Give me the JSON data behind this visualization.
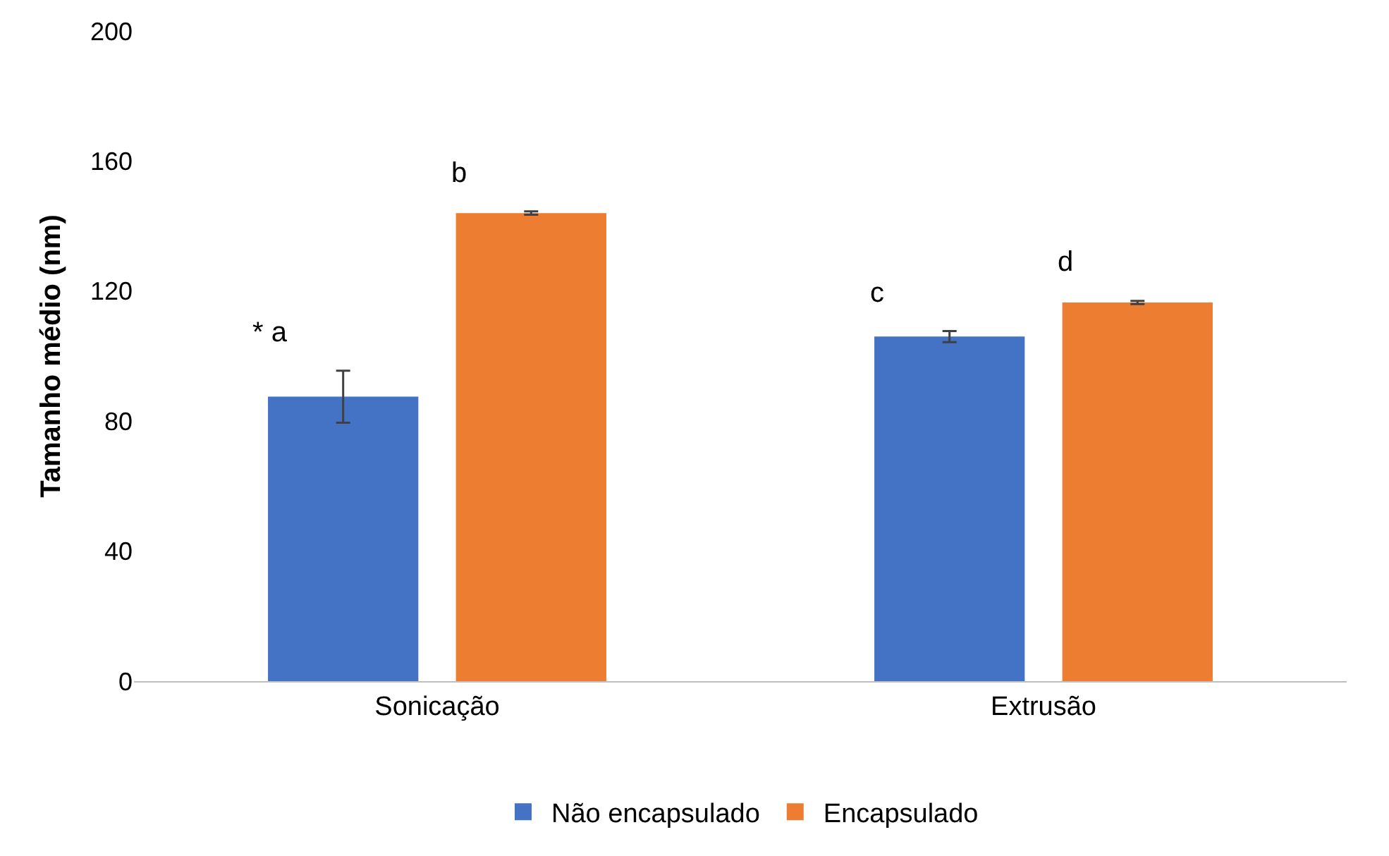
{
  "chart_data": {
    "type": "bar",
    "ylabel": "Tamanho médio (nm)",
    "categories": [
      "Sonicação",
      "Extrusão"
    ],
    "series": [
      {
        "name": "Não encapsulado",
        "color": "#4472c4",
        "values": [
          87.5,
          106
        ],
        "errors": [
          8,
          1.7
        ],
        "value_labels": [
          "* a",
          "c"
        ]
      },
      {
        "name": "Encapsulado",
        "color": "#ed7d31",
        "values": [
          144,
          116.5
        ],
        "errors": [
          0.5,
          0.5
        ],
        "value_labels": [
          "b",
          "d"
        ]
      }
    ],
    "ylim": [
      0,
      200
    ],
    "yticks": [
      0,
      40,
      80,
      120,
      160,
      200
    ],
    "grid": false,
    "legend": "bottom"
  }
}
